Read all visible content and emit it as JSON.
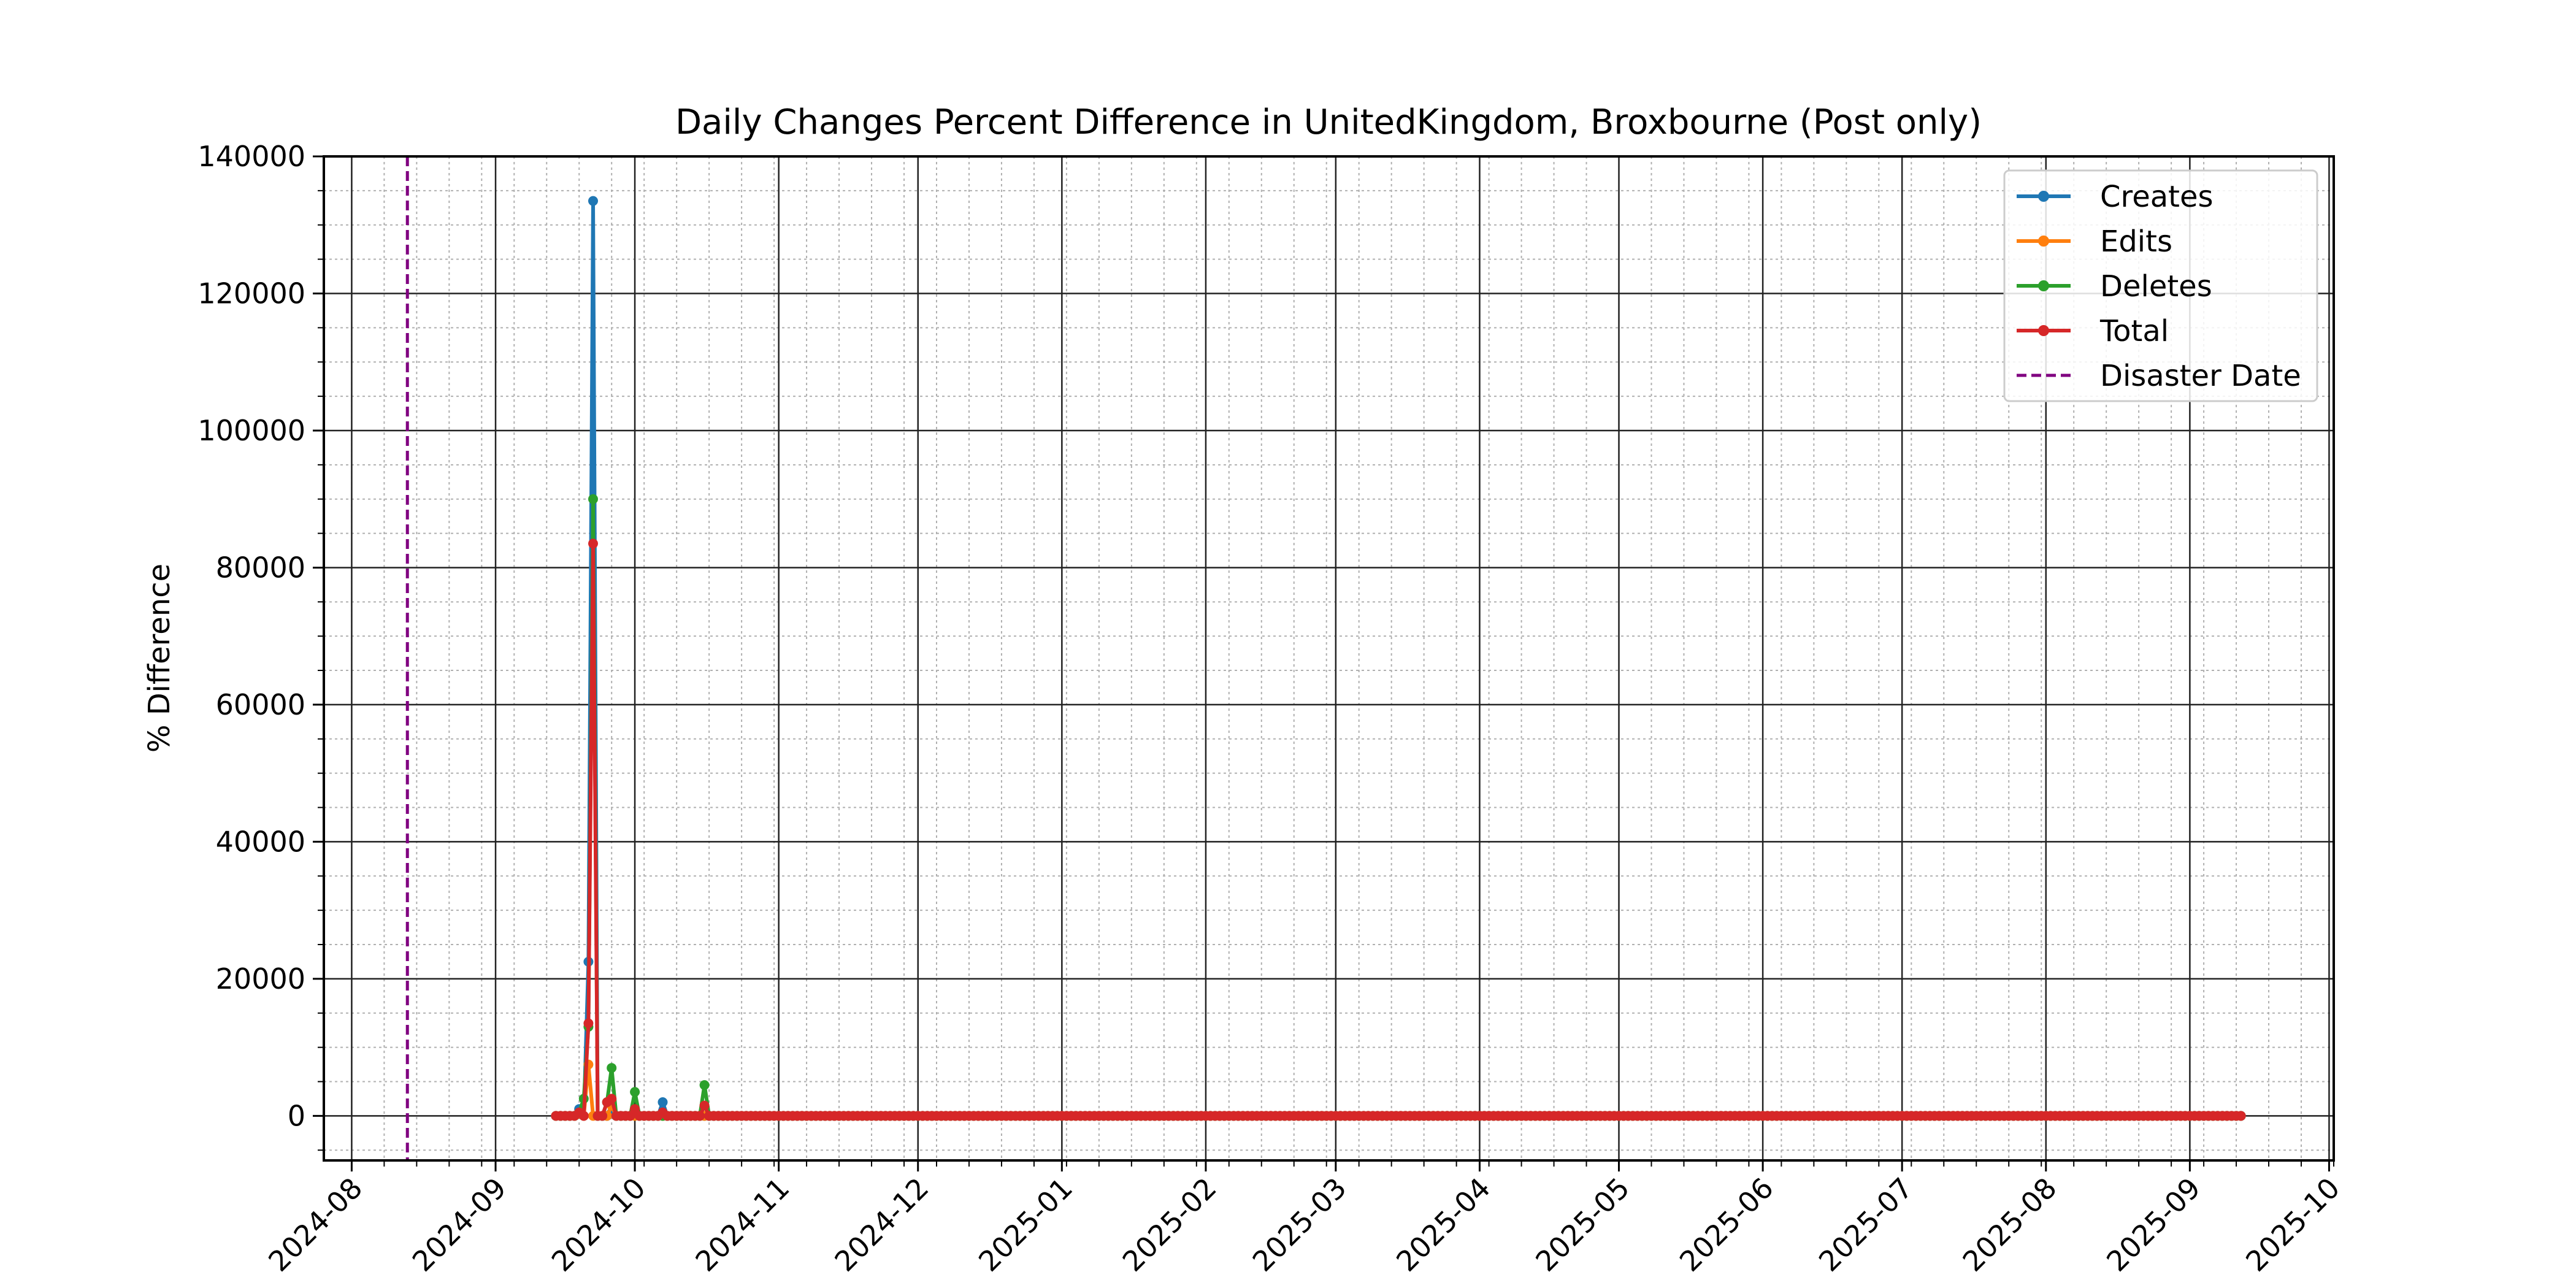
{
  "chart_data": {
    "type": "line",
    "title": "Daily Changes Percent Difference in UnitedKingdom, Broxbourne (Post only)",
    "xlabel": "",
    "ylabel": "% Difference",
    "ylim": [
      -6500,
      140000
    ],
    "xlim": [
      "2024-07-26",
      "2025-10-02"
    ],
    "grid": true,
    "legend_position": "top-right",
    "y_ticks": [
      0,
      20000,
      40000,
      60000,
      80000,
      100000,
      120000,
      140000
    ],
    "x_ticks": [
      "2024-08",
      "2024-09",
      "2024-10",
      "2024-11",
      "2024-12",
      "2025-01",
      "2025-02",
      "2025-03",
      "2025-04",
      "2025-05",
      "2025-06",
      "2025-07",
      "2025-08",
      "2025-09",
      "2025-10"
    ],
    "disaster": {
      "name": "Disaster Date",
      "date": "2024-08-13",
      "color": "#800080"
    },
    "baseline": {
      "start": "2024-10-20",
      "end": "2025-09-12",
      "value": 0
    },
    "series": [
      {
        "name": "Creates",
        "color": "#1f77b4",
        "points": [
          [
            "2024-09-14",
            0
          ],
          [
            "2024-09-15",
            0
          ],
          [
            "2024-09-16",
            0
          ],
          [
            "2024-09-17",
            0
          ],
          [
            "2024-09-18",
            0
          ],
          [
            "2024-09-19",
            1000
          ],
          [
            "2024-09-20",
            0
          ],
          [
            "2024-09-21",
            22500
          ],
          [
            "2024-09-22",
            133500
          ],
          [
            "2024-09-23",
            0
          ],
          [
            "2024-09-24",
            0
          ],
          [
            "2024-09-25",
            0
          ],
          [
            "2024-09-26",
            500
          ],
          [
            "2024-09-27",
            0
          ],
          [
            "2024-09-28",
            0
          ],
          [
            "2024-09-29",
            0
          ],
          [
            "2024-09-30",
            0
          ],
          [
            "2024-10-01",
            500
          ],
          [
            "2024-10-02",
            0
          ],
          [
            "2024-10-03",
            0
          ],
          [
            "2024-10-04",
            0
          ],
          [
            "2024-10-05",
            0
          ],
          [
            "2024-10-06",
            0
          ],
          [
            "2024-10-07",
            2000
          ],
          [
            "2024-10-08",
            0
          ],
          [
            "2024-10-09",
            0
          ],
          [
            "2024-10-10",
            0
          ],
          [
            "2024-10-11",
            0
          ],
          [
            "2024-10-12",
            0
          ],
          [
            "2024-10-13",
            0
          ],
          [
            "2024-10-14",
            0
          ],
          [
            "2024-10-15",
            0
          ],
          [
            "2024-10-16",
            0
          ],
          [
            "2024-10-17",
            0
          ],
          [
            "2024-10-18",
            0
          ],
          [
            "2024-10-19",
            0
          ]
        ]
      },
      {
        "name": "Edits",
        "color": "#ff7f0e",
        "points": [
          [
            "2024-09-14",
            0
          ],
          [
            "2024-09-15",
            0
          ],
          [
            "2024-09-16",
            0
          ],
          [
            "2024-09-17",
            0
          ],
          [
            "2024-09-18",
            0
          ],
          [
            "2024-09-19",
            300
          ],
          [
            "2024-09-20",
            0
          ],
          [
            "2024-09-21",
            7500
          ],
          [
            "2024-09-22",
            0
          ],
          [
            "2024-09-23",
            0
          ],
          [
            "2024-09-24",
            0
          ],
          [
            "2024-09-25",
            0
          ],
          [
            "2024-09-26",
            1500
          ],
          [
            "2024-09-27",
            0
          ],
          [
            "2024-09-28",
            0
          ],
          [
            "2024-09-29",
            0
          ],
          [
            "2024-09-30",
            0
          ],
          [
            "2024-10-01",
            0
          ],
          [
            "2024-10-02",
            0
          ],
          [
            "2024-10-03",
            0
          ],
          [
            "2024-10-04",
            0
          ],
          [
            "2024-10-05",
            0
          ],
          [
            "2024-10-06",
            0
          ],
          [
            "2024-10-07",
            0
          ],
          [
            "2024-10-08",
            0
          ],
          [
            "2024-10-09",
            0
          ],
          [
            "2024-10-10",
            0
          ],
          [
            "2024-10-11",
            0
          ],
          [
            "2024-10-12",
            0
          ],
          [
            "2024-10-13",
            0
          ],
          [
            "2024-10-14",
            0
          ],
          [
            "2024-10-15",
            0
          ],
          [
            "2024-10-16",
            0
          ],
          [
            "2024-10-17",
            0
          ],
          [
            "2024-10-18",
            0
          ],
          [
            "2024-10-19",
            0
          ]
        ]
      },
      {
        "name": "Deletes",
        "color": "#2ca02c",
        "points": [
          [
            "2024-09-14",
            0
          ],
          [
            "2024-09-15",
            0
          ],
          [
            "2024-09-16",
            0
          ],
          [
            "2024-09-17",
            0
          ],
          [
            "2024-09-18",
            0
          ],
          [
            "2024-09-19",
            500
          ],
          [
            "2024-09-20",
            2500
          ],
          [
            "2024-09-21",
            13000
          ],
          [
            "2024-09-22",
            90000
          ],
          [
            "2024-09-23",
            0
          ],
          [
            "2024-09-24",
            0
          ],
          [
            "2024-09-25",
            2000
          ],
          [
            "2024-09-26",
            7000
          ],
          [
            "2024-09-27",
            0
          ],
          [
            "2024-09-28",
            0
          ],
          [
            "2024-09-29",
            0
          ],
          [
            "2024-09-30",
            0
          ],
          [
            "2024-10-01",
            3500
          ],
          [
            "2024-10-02",
            0
          ],
          [
            "2024-10-03",
            0
          ],
          [
            "2024-10-04",
            0
          ],
          [
            "2024-10-05",
            0
          ],
          [
            "2024-10-06",
            0
          ],
          [
            "2024-10-07",
            0
          ],
          [
            "2024-10-08",
            0
          ],
          [
            "2024-10-09",
            0
          ],
          [
            "2024-10-10",
            0
          ],
          [
            "2024-10-11",
            0
          ],
          [
            "2024-10-12",
            0
          ],
          [
            "2024-10-13",
            0
          ],
          [
            "2024-10-14",
            0
          ],
          [
            "2024-10-15",
            0
          ],
          [
            "2024-10-16",
            4500
          ],
          [
            "2024-10-17",
            0
          ],
          [
            "2024-10-18",
            0
          ],
          [
            "2024-10-19",
            0
          ]
        ]
      },
      {
        "name": "Total",
        "color": "#d62728",
        "points": [
          [
            "2024-09-14",
            0
          ],
          [
            "2024-09-15",
            0
          ],
          [
            "2024-09-16",
            0
          ],
          [
            "2024-09-17",
            0
          ],
          [
            "2024-09-18",
            0
          ],
          [
            "2024-09-19",
            500
          ],
          [
            "2024-09-20",
            0
          ],
          [
            "2024-09-21",
            13500
          ],
          [
            "2024-09-22",
            83500
          ],
          [
            "2024-09-23",
            0
          ],
          [
            "2024-09-24",
            0
          ],
          [
            "2024-09-25",
            2000
          ],
          [
            "2024-09-26",
            2500
          ],
          [
            "2024-09-27",
            0
          ],
          [
            "2024-09-28",
            0
          ],
          [
            "2024-09-29",
            0
          ],
          [
            "2024-09-30",
            0
          ],
          [
            "2024-10-01",
            1000
          ],
          [
            "2024-10-02",
            0
          ],
          [
            "2024-10-03",
            0
          ],
          [
            "2024-10-04",
            0
          ],
          [
            "2024-10-05",
            0
          ],
          [
            "2024-10-06",
            0
          ],
          [
            "2024-10-07",
            500
          ],
          [
            "2024-10-08",
            0
          ],
          [
            "2024-10-09",
            0
          ],
          [
            "2024-10-10",
            0
          ],
          [
            "2024-10-11",
            0
          ],
          [
            "2024-10-12",
            0
          ],
          [
            "2024-10-13",
            0
          ],
          [
            "2024-10-14",
            0
          ],
          [
            "2024-10-15",
            0
          ],
          [
            "2024-10-16",
            1500
          ],
          [
            "2024-10-17",
            0
          ],
          [
            "2024-10-18",
            0
          ],
          [
            "2024-10-19",
            0
          ]
        ]
      }
    ]
  }
}
